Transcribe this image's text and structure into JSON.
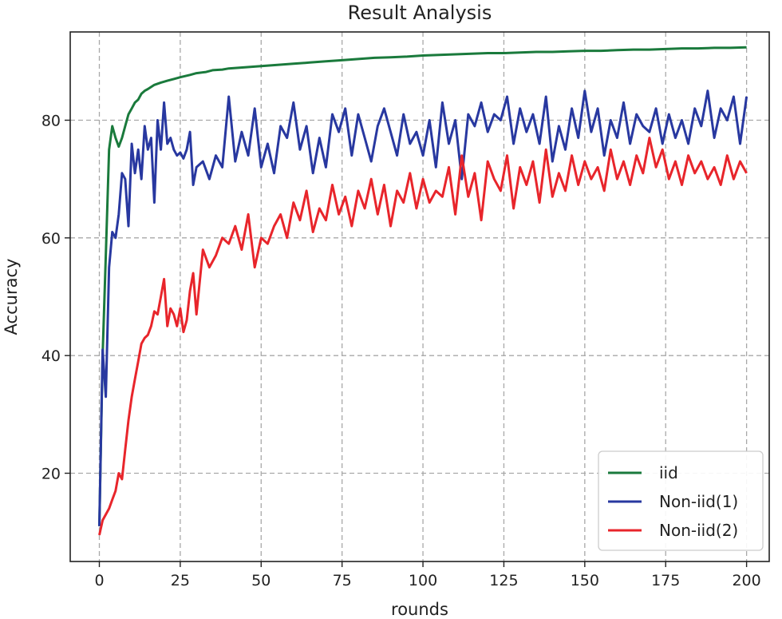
{
  "chart_data": {
    "type": "line",
    "title": "Result Analysis",
    "xlabel": "rounds",
    "ylabel": "Accuracy",
    "xlim": [
      -9,
      207
    ],
    "ylim": [
      5,
      95
    ],
    "xticks": [
      0,
      25,
      50,
      75,
      100,
      125,
      150,
      175,
      200
    ],
    "yticks": [
      20,
      40,
      60,
      80
    ],
    "grid": true,
    "legend_position": "lower-right",
    "series": [
      {
        "name": "iid",
        "color": "#1a7a3c",
        "x": [
          0,
          1,
          2,
          3,
          4,
          5,
          6,
          7,
          8,
          9,
          10,
          11,
          12,
          13,
          14,
          15,
          17,
          19,
          21,
          23,
          25,
          28,
          30,
          33,
          35,
          38,
          40,
          45,
          50,
          55,
          60,
          65,
          70,
          75,
          80,
          85,
          90,
          95,
          100,
          105,
          110,
          115,
          120,
          125,
          130,
          135,
          140,
          145,
          150,
          155,
          160,
          165,
          170,
          175,
          180,
          185,
          190,
          195,
          200
        ],
        "y": [
          11,
          40,
          57,
          75,
          79,
          77,
          75.5,
          77,
          79,
          81,
          82,
          83,
          83.5,
          84.5,
          85,
          85.3,
          86,
          86.4,
          86.7,
          87,
          87.3,
          87.7,
          88,
          88.2,
          88.5,
          88.6,
          88.8,
          89,
          89.2,
          89.4,
          89.6,
          89.8,
          90,
          90.2,
          90.4,
          90.6,
          90.7,
          90.8,
          91,
          91.1,
          91.2,
          91.3,
          91.4,
          91.4,
          91.5,
          91.6,
          91.6,
          91.7,
          91.8,
          91.8,
          91.9,
          92,
          92,
          92.1,
          92.2,
          92.2,
          92.3,
          92.3,
          92.4
        ]
      },
      {
        "name": "Non-iid(1)",
        "color": "#2838a0",
        "x": [
          0,
          1,
          2,
          3,
          4,
          5,
          6,
          7,
          8,
          9,
          10,
          11,
          12,
          13,
          14,
          15,
          16,
          17,
          18,
          19,
          20,
          21,
          22,
          23,
          24,
          25,
          26,
          27,
          28,
          29,
          30,
          32,
          34,
          36,
          38,
          40,
          42,
          44,
          46,
          48,
          50,
          52,
          54,
          56,
          58,
          60,
          62,
          64,
          66,
          68,
          70,
          72,
          74,
          76,
          78,
          80,
          82,
          84,
          86,
          88,
          90,
          92,
          94,
          96,
          98,
          100,
          102,
          104,
          106,
          108,
          110,
          112,
          114,
          116,
          118,
          120,
          122,
          124,
          126,
          128,
          130,
          132,
          134,
          136,
          138,
          140,
          142,
          144,
          146,
          148,
          150,
          152,
          154,
          156,
          158,
          160,
          162,
          164,
          166,
          168,
          170,
          172,
          174,
          176,
          178,
          180,
          182,
          184,
          186,
          188,
          190,
          192,
          194,
          196,
          198,
          200
        ],
        "y": [
          11,
          41,
          33,
          55,
          61,
          60,
          64,
          71,
          70,
          62,
          76,
          71,
          75,
          70,
          79,
          75,
          77,
          66,
          80,
          75,
          83,
          76,
          77,
          75,
          74,
          74.5,
          73.5,
          75,
          78,
          69,
          72,
          73,
          70,
          74,
          72,
          84,
          73,
          78,
          74,
          82,
          72,
          76,
          71,
          79,
          77,
          83,
          75,
          79,
          71,
          77,
          72,
          81,
          78,
          82,
          74,
          81,
          77,
          73,
          79,
          82,
          78,
          74,
          81,
          76,
          78,
          74,
          80,
          72,
          83,
          76,
          80,
          70,
          81,
          79,
          83,
          78,
          81,
          80,
          84,
          76,
          82,
          78,
          81,
          76,
          84,
          73,
          79,
          75,
          82,
          77,
          85,
          78,
          82,
          74,
          80,
          77,
          83,
          76,
          81,
          79,
          78,
          82,
          76,
          81,
          77,
          80,
          76,
          82,
          79,
          85,
          77,
          82,
          80,
          84,
          76,
          84
        ]
      },
      {
        "name": "Non-iid(2)",
        "color": "#e8252b",
        "x": [
          0,
          1,
          2,
          3,
          4,
          5,
          6,
          7,
          8,
          9,
          10,
          11,
          12,
          13,
          14,
          15,
          16,
          17,
          18,
          19,
          20,
          21,
          22,
          23,
          24,
          25,
          26,
          27,
          28,
          29,
          30,
          32,
          34,
          36,
          38,
          40,
          42,
          44,
          46,
          48,
          50,
          52,
          54,
          56,
          58,
          60,
          62,
          64,
          66,
          68,
          70,
          72,
          74,
          76,
          78,
          80,
          82,
          84,
          86,
          88,
          90,
          92,
          94,
          96,
          98,
          100,
          102,
          104,
          106,
          108,
          110,
          112,
          114,
          116,
          118,
          120,
          122,
          124,
          126,
          128,
          130,
          132,
          134,
          136,
          138,
          140,
          142,
          144,
          146,
          148,
          150,
          152,
          154,
          156,
          158,
          160,
          162,
          164,
          166,
          168,
          170,
          172,
          174,
          176,
          178,
          180,
          182,
          184,
          186,
          188,
          190,
          192,
          194,
          196,
          198,
          200
        ],
        "y": [
          9.5,
          12,
          13,
          14,
          15.5,
          17,
          20,
          19,
          24,
          29,
          33,
          36,
          39,
          42,
          43,
          43.5,
          45,
          47.5,
          47,
          50,
          53,
          45,
          48,
          47,
          45,
          48,
          44,
          46,
          51,
          54,
          47,
          58,
          55,
          57,
          60,
          59,
          62,
          58,
          64,
          55,
          60,
          59,
          62,
          64,
          60,
          66,
          63,
          68,
          61,
          65,
          63,
          69,
          64,
          67,
          62,
          68,
          65,
          70,
          64,
          69,
          62,
          68,
          66,
          71,
          65,
          70,
          66,
          68,
          67,
          72,
          64,
          74,
          67,
          71,
          63,
          73,
          70,
          68,
          74,
          65,
          72,
          69,
          73,
          66,
          75,
          67,
          71,
          68,
          74,
          69,
          73,
          70,
          72,
          68,
          75,
          70,
          73,
          69,
          74,
          71,
          77,
          72,
          75,
          70,
          73,
          69,
          74,
          71,
          73,
          70,
          72,
          69,
          74,
          70,
          73,
          71
        ]
      }
    ]
  }
}
